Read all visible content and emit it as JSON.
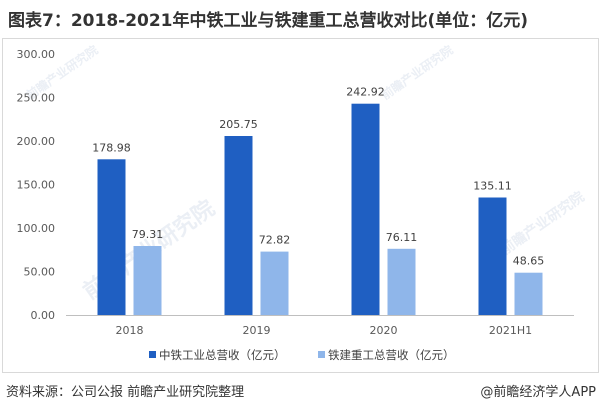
{
  "chart_data": {
    "type": "bar",
    "title": "图表7：2018-2021年中铁工业与铁建重工总营收对比(单位：亿元)",
    "categories": [
      "2018",
      "2019",
      "2020",
      "2021H1"
    ],
    "series": [
      {
        "name": "中铁工业总营收（亿元）",
        "color": "#1f5fc2",
        "values": [
          178.98,
          205.75,
          242.92,
          135.11
        ]
      },
      {
        "name": "铁建重工总营收（亿元）",
        "color": "#8fb6ea",
        "values": [
          79.31,
          72.82,
          76.11,
          48.65
        ]
      }
    ],
    "y_tick_labels": [
      "0.00",
      "50.00",
      "100.00",
      "150.00",
      "200.00",
      "250.00",
      "300.00"
    ],
    "ylim": [
      0,
      300
    ],
    "legend_position": "bottom"
  },
  "footer": {
    "source": "资料来源：公司公报 前瞻产业研究院整理",
    "brand": "@前瞻经济学人APP"
  },
  "watermark": {
    "text": "前瞻产业研究院"
  },
  "colors": {
    "axis": "#bfbfbf",
    "frame": "#d9d9d9"
  }
}
